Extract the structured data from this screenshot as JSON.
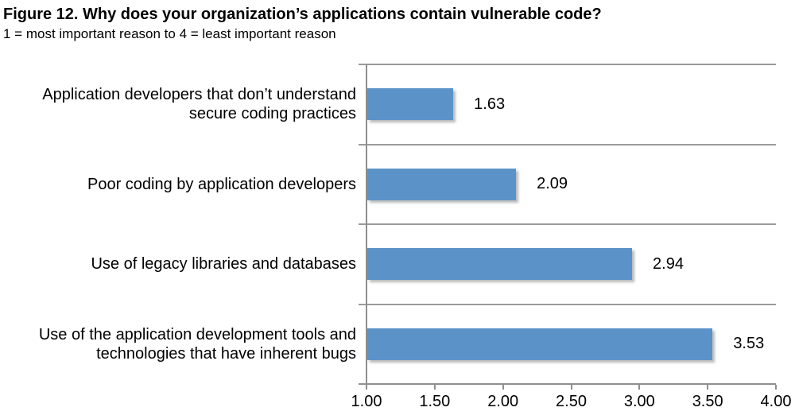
{
  "header": {
    "title": "Figure 12. Why does your organization’s applications contain vulnerable code?",
    "subtitle": "1 = most important reason to 4 = least important reason"
  },
  "chart_data": {
    "type": "bar",
    "orientation": "horizontal",
    "title": "Figure 12. Why does your organization’s applications contain vulnerable code?",
    "subtitle": "1 = most important reason to 4 = least important reason",
    "categories": [
      "Application developers that don’t understand secure coding practices",
      "Poor coding by application developers",
      "Use of legacy libraries and databases",
      "Use of the application development tools and technologies that have inherent bugs"
    ],
    "values": [
      1.63,
      2.09,
      2.94,
      3.53
    ],
    "value_labels": [
      "1.63",
      "2.09",
      "2.94",
      "3.53"
    ],
    "x_ticks": [
      "1.00",
      "1.50",
      "2.00",
      "2.50",
      "3.00",
      "3.50",
      "4.00"
    ],
    "xlim": [
      1.0,
      4.0
    ],
    "xlabel": "",
    "ylabel": "",
    "legend": "none",
    "grid": "horizontal category separators only",
    "colors": {
      "bar": "#5b92c8",
      "separator_line": "#9a9a9a",
      "axis_line": "#8f8f8f",
      "text": "#000000",
      "background": "#ffffff"
    }
  }
}
